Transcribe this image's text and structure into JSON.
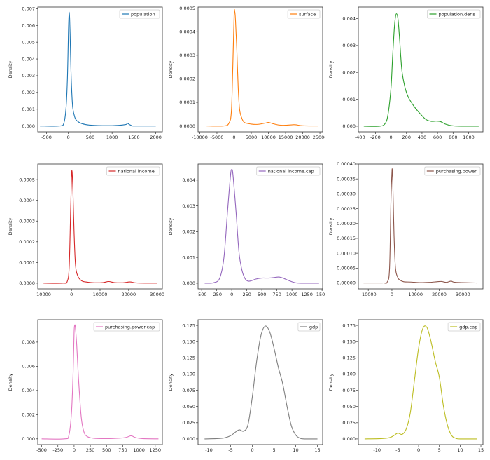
{
  "chart_data": [
    {
      "type": "line",
      "ylabel": "Density",
      "xlim": [
        -700,
        2150
      ],
      "ylim": [
        -0.00035,
        0.0071
      ],
      "xticks": [
        -500,
        0,
        500,
        1000,
        1500,
        2000
      ],
      "yticks": [
        0.0,
        0.001,
        0.002,
        0.003,
        0.004,
        0.005,
        0.006,
        0.007
      ],
      "ytick_labels": [
        "0.000",
        "0.001",
        "0.002",
        "0.003",
        "0.004",
        "0.005",
        "0.006",
        "0.007"
      ],
      "legend_position": "top-right",
      "series": [
        {
          "name": "population",
          "color": "#1f77b4",
          "x": [
            -650,
            -200,
            -100,
            -50,
            -20,
            0,
            10,
            20,
            30,
            40,
            50,
            70,
            100,
            150,
            200,
            300,
            500,
            1000,
            1300,
            1350,
            1400,
            1450,
            1500,
            2000
          ],
          "y": [
            0,
            0,
            0.0002,
            0.0012,
            0.003,
            0.0055,
            0.0064,
            0.0068,
            0.0064,
            0.0055,
            0.0043,
            0.0025,
            0.0011,
            0.0005,
            0.0003,
            0.00015,
            5e-05,
            2e-05,
            8e-05,
            0.00016,
            8e-05,
            2e-05,
            0,
            0
          ]
        }
      ]
    },
    {
      "type": "line",
      "ylabel": "Density",
      "xlim": [
        -10500,
        25800
      ],
      "ylim": [
        -2.5e-05,
        0.000505
      ],
      "xticks": [
        -10000,
        -5000,
        0,
        5000,
        10000,
        15000,
        20000,
        25000
      ],
      "yticks": [
        0.0,
        0.0001,
        0.0002,
        0.0003,
        0.0004,
        0.0005
      ],
      "ytick_labels": [
        "0.0000",
        "0.0001",
        "0.0002",
        "0.0003",
        "0.0004",
        "0.0005"
      ],
      "legend_position": "top-right",
      "series": [
        {
          "name": "surface",
          "color": "#ff7f0e",
          "x": [
            -8000,
            -3000,
            -1500,
            -800,
            -400,
            0,
            200,
            400,
            800,
            1200,
            1600,
            2200,
            3000,
            5000,
            7000,
            9000,
            10000,
            11000,
            13000,
            15000,
            17000,
            18000,
            20000,
            24500
          ],
          "y": [
            0,
            0,
            1.2e-05,
            6e-05,
            0.00024,
            0.00047,
            0.000485,
            0.00045,
            0.00032,
            0.00016,
            7e-05,
            3.5e-05,
            1.5e-05,
            8e-06,
            7e-06,
            1.2e-05,
            1.5e-05,
            1.1e-05,
            4e-06,
            3e-06,
            5e-06,
            5e-06,
            1e-06,
            0
          ]
        }
      ]
    },
    {
      "type": "line",
      "ylabel": "Density",
      "xlim": [
        -420,
        1185
      ],
      "ylim": [
        -0.00021,
        0.00443
      ],
      "xticks": [
        -400,
        -200,
        0,
        200,
        400,
        600,
        800,
        1000,
        1200
      ],
      "yticks": [
        0.0,
        0.001,
        0.002,
        0.003,
        0.004
      ],
      "ytick_labels": [
        "0.000",
        "0.001",
        "0.002",
        "0.003",
        "0.004"
      ],
      "legend_position": "top-right",
      "series": [
        {
          "name": "population.dens",
          "color": "#2ca02c",
          "x": [
            -350,
            -150,
            -80,
            -40,
            0,
            20,
            40,
            55,
            70,
            90,
            110,
            140,
            180,
            220,
            270,
            320,
            380,
            450,
            520,
            580,
            640,
            700,
            780,
            900,
            1130
          ],
          "y": [
            0,
            0,
            8e-05,
            0.0004,
            0.0014,
            0.0025,
            0.0035,
            0.004,
            0.00418,
            0.004,
            0.0033,
            0.0021,
            0.00145,
            0.0011,
            0.00085,
            0.00065,
            0.00045,
            0.00025,
            0.00018,
            0.00019,
            0.00017,
            8e-05,
            2e-05,
            0,
            0
          ]
        }
      ]
    },
    {
      "type": "line",
      "ylabel": "Density",
      "xlim": [
        -11800,
        31800
      ],
      "ylim": [
        -2.75e-05,
        0.000575
      ],
      "xticks": [
        -10000,
        0,
        10000,
        20000,
        30000
      ],
      "yticks": [
        0.0,
        0.0001,
        0.0002,
        0.0003,
        0.0004,
        0.0005
      ],
      "ytick_labels": [
        "0.0000",
        "0.0001",
        "0.0002",
        "0.0003",
        "0.0004",
        "0.0005"
      ],
      "legend_position": "top-right",
      "series": [
        {
          "name": "national income",
          "color": "#d62728",
          "x": [
            -9800,
            -3000,
            -1500,
            -800,
            -300,
            0,
            200,
            500,
            900,
            1400,
            2200,
            3500,
            5000,
            8000,
            11000,
            13000,
            15000,
            18000,
            20500,
            23000,
            30000
          ],
          "y": [
            0,
            0,
            8e-06,
            8e-05,
            0.00035,
            0.00051,
            0.00054,
            0.00045,
            0.00025,
            9e-05,
            3.5e-05,
            1.2e-05,
            6e-06,
            2e-06,
            3e-06,
            8e-06,
            3e-06,
            2e-06,
            6e-06,
            1e-06,
            0
          ]
        }
      ]
    },
    {
      "type": "line",
      "ylabel": "Density",
      "xlim": [
        -560,
        1510
      ],
      "ylim": [
        -0.00022,
        0.00462
      ],
      "xticks": [
        -500,
        -250,
        0,
        250,
        500,
        750,
        1000,
        1250,
        1500
      ],
      "yticks": [
        0.0,
        0.001,
        0.002,
        0.003,
        0.004
      ],
      "ytick_labels": [
        "0.000",
        "0.001",
        "0.002",
        "0.003",
        "0.004"
      ],
      "legend_position": "top-right",
      "series": [
        {
          "name": "national income.cap",
          "color": "#9467bd",
          "x": [
            -450,
            -300,
            -200,
            -130,
            -70,
            -20,
            0,
            20,
            70,
            120,
            170,
            220,
            270,
            330,
            400,
            500,
            600,
            700,
            780,
            850,
            950,
            1050,
            1150,
            1450
          ],
          "y": [
            0,
            2e-05,
            0.0002,
            0.001,
            0.0028,
            0.0042,
            0.0044,
            0.0042,
            0.0028,
            0.0012,
            0.0005,
            0.00018,
            8e-05,
            0.0001,
            0.00016,
            0.0002,
            0.0002,
            0.00022,
            0.00024,
            0.0002,
            0.0001,
            2e-05,
            0,
            0
          ]
        }
      ]
    },
    {
      "type": "line",
      "ylabel": "Density",
      "xlim": [
        -14200,
        38500
      ],
      "ylim": [
        -2e-05,
        0.0004
      ],
      "xticks": [
        -10000,
        0,
        10000,
        20000,
        30000,
        40000
      ],
      "yticks": [
        0.0,
        5e-05,
        0.0001,
        0.00015,
        0.0002,
        0.00025,
        0.0003,
        0.00035,
        0.0004
      ],
      "ytick_labels": [
        "0.00000",
        "0.00005",
        "0.00010",
        "0.00015",
        "0.00020",
        "0.00025",
        "0.00030",
        "0.00035",
        "0.00040"
      ],
      "legend_position": "top-right",
      "series": [
        {
          "name": "purchasing.power",
          "color": "#8c564b",
          "x": [
            -12000,
            -4000,
            -2000,
            -1000,
            -400,
            0,
            150,
            400,
            900,
            1500,
            2500,
            3500,
            5000,
            8000,
            12000,
            16000,
            19000,
            21000,
            23000,
            25000,
            27000,
            36000
          ],
          "y": [
            0,
            0,
            3e-06,
            5e-05,
            0.00028,
            0.00037,
            0.00038,
            0.00033,
            0.00016,
            5e-05,
            1.8e-05,
            9e-06,
            4e-06,
            3e-06,
            1e-06,
            2e-06,
            4e-06,
            5e-06,
            2e-06,
            6e-06,
            2e-06,
            0
          ]
        }
      ]
    },
    {
      "type": "line",
      "ylabel": "Density",
      "xlim": [
        -560,
        1360
      ],
      "ylim": [
        -0.000475,
        0.00985
      ],
      "xticks": [
        -500,
        -250,
        0,
        250,
        500,
        750,
        1000,
        1250
      ],
      "yticks": [
        0.0,
        0.002,
        0.004,
        0.006,
        0.008
      ],
      "ytick_labels": [
        "0.000",
        "0.002",
        "0.004",
        "0.006",
        "0.008"
      ],
      "legend_position": "top-right",
      "series": [
        {
          "name": "purchasing.power.cap",
          "color": "#e377c2",
          "x": [
            -500,
            -150,
            -80,
            -40,
            -15,
            0,
            10,
            20,
            40,
            70,
            110,
            150,
            200,
            300,
            500,
            700,
            800,
            870,
            900,
            950,
            1050,
            1300
          ],
          "y": [
            0,
            0,
            0.0003,
            0.0022,
            0.0055,
            0.0088,
            0.0094,
            0.0092,
            0.0078,
            0.0048,
            0.0018,
            0.0006,
            0.0002,
            5e-05,
            2e-05,
            6e-05,
            0.00012,
            0.00025,
            0.00022,
            0.0001,
            2e-05,
            0
          ]
        }
      ]
    },
    {
      "type": "line",
      "ylabel": "Density",
      "xlim": [
        -12.5,
        16.2
      ],
      "ylim": [
        -0.00875,
        0.18375
      ],
      "xticks": [
        -10,
        -5,
        0,
        5,
        10,
        15
      ],
      "yticks": [
        0.0,
        0.025,
        0.05,
        0.075,
        0.1,
        0.125,
        0.15,
        0.175
      ],
      "ytick_labels": [
        "0.000",
        "0.025",
        "0.050",
        "0.075",
        "0.100",
        "0.125",
        "0.150",
        "0.175"
      ],
      "legend_position": "top-right",
      "series": [
        {
          "name": "gdp",
          "color": "#7f7f7f",
          "x": [
            -11,
            -7,
            -5,
            -4,
            -3,
            -2,
            -1,
            0,
            1,
            2,
            3,
            4,
            5,
            6,
            7,
            8,
            9,
            10,
            11,
            12,
            15
          ],
          "y": [
            0,
            0.001,
            0.005,
            0.01,
            0.014,
            0.012,
            0.022,
            0.065,
            0.12,
            0.16,
            0.174,
            0.165,
            0.14,
            0.11,
            0.085,
            0.05,
            0.02,
            0.006,
            0.001,
            0,
            0
          ]
        }
      ]
    },
    {
      "type": "line",
      "ylabel": "Density",
      "xlim": [
        -14.5,
        15.5
      ],
      "ylim": [
        -0.00875,
        0.18375
      ],
      "xticks": [
        -10,
        -5,
        0,
        5,
        10,
        15
      ],
      "yticks": [
        0.0,
        0.025,
        0.05,
        0.075,
        0.1,
        0.125,
        0.15,
        0.175
      ],
      "ytick_labels": [
        "0.000",
        "0.025",
        "0.050",
        "0.075",
        "0.100",
        "0.125",
        "0.150",
        "0.175"
      ],
      "legend_position": "top-right",
      "series": [
        {
          "name": "gdp.cap",
          "color": "#bcbd22",
          "x": [
            -13,
            -9,
            -7,
            -6,
            -5,
            -4,
            -3,
            -2,
            -1,
            0,
            1,
            2,
            3,
            4,
            5,
            6,
            7,
            8,
            9,
            10,
            14
          ],
          "y": [
            0,
            0.0005,
            0.002,
            0.005,
            0.009,
            0.007,
            0.015,
            0.04,
            0.09,
            0.14,
            0.17,
            0.172,
            0.15,
            0.12,
            0.095,
            0.05,
            0.02,
            0.005,
            0.001,
            0,
            0
          ]
        }
      ]
    }
  ]
}
